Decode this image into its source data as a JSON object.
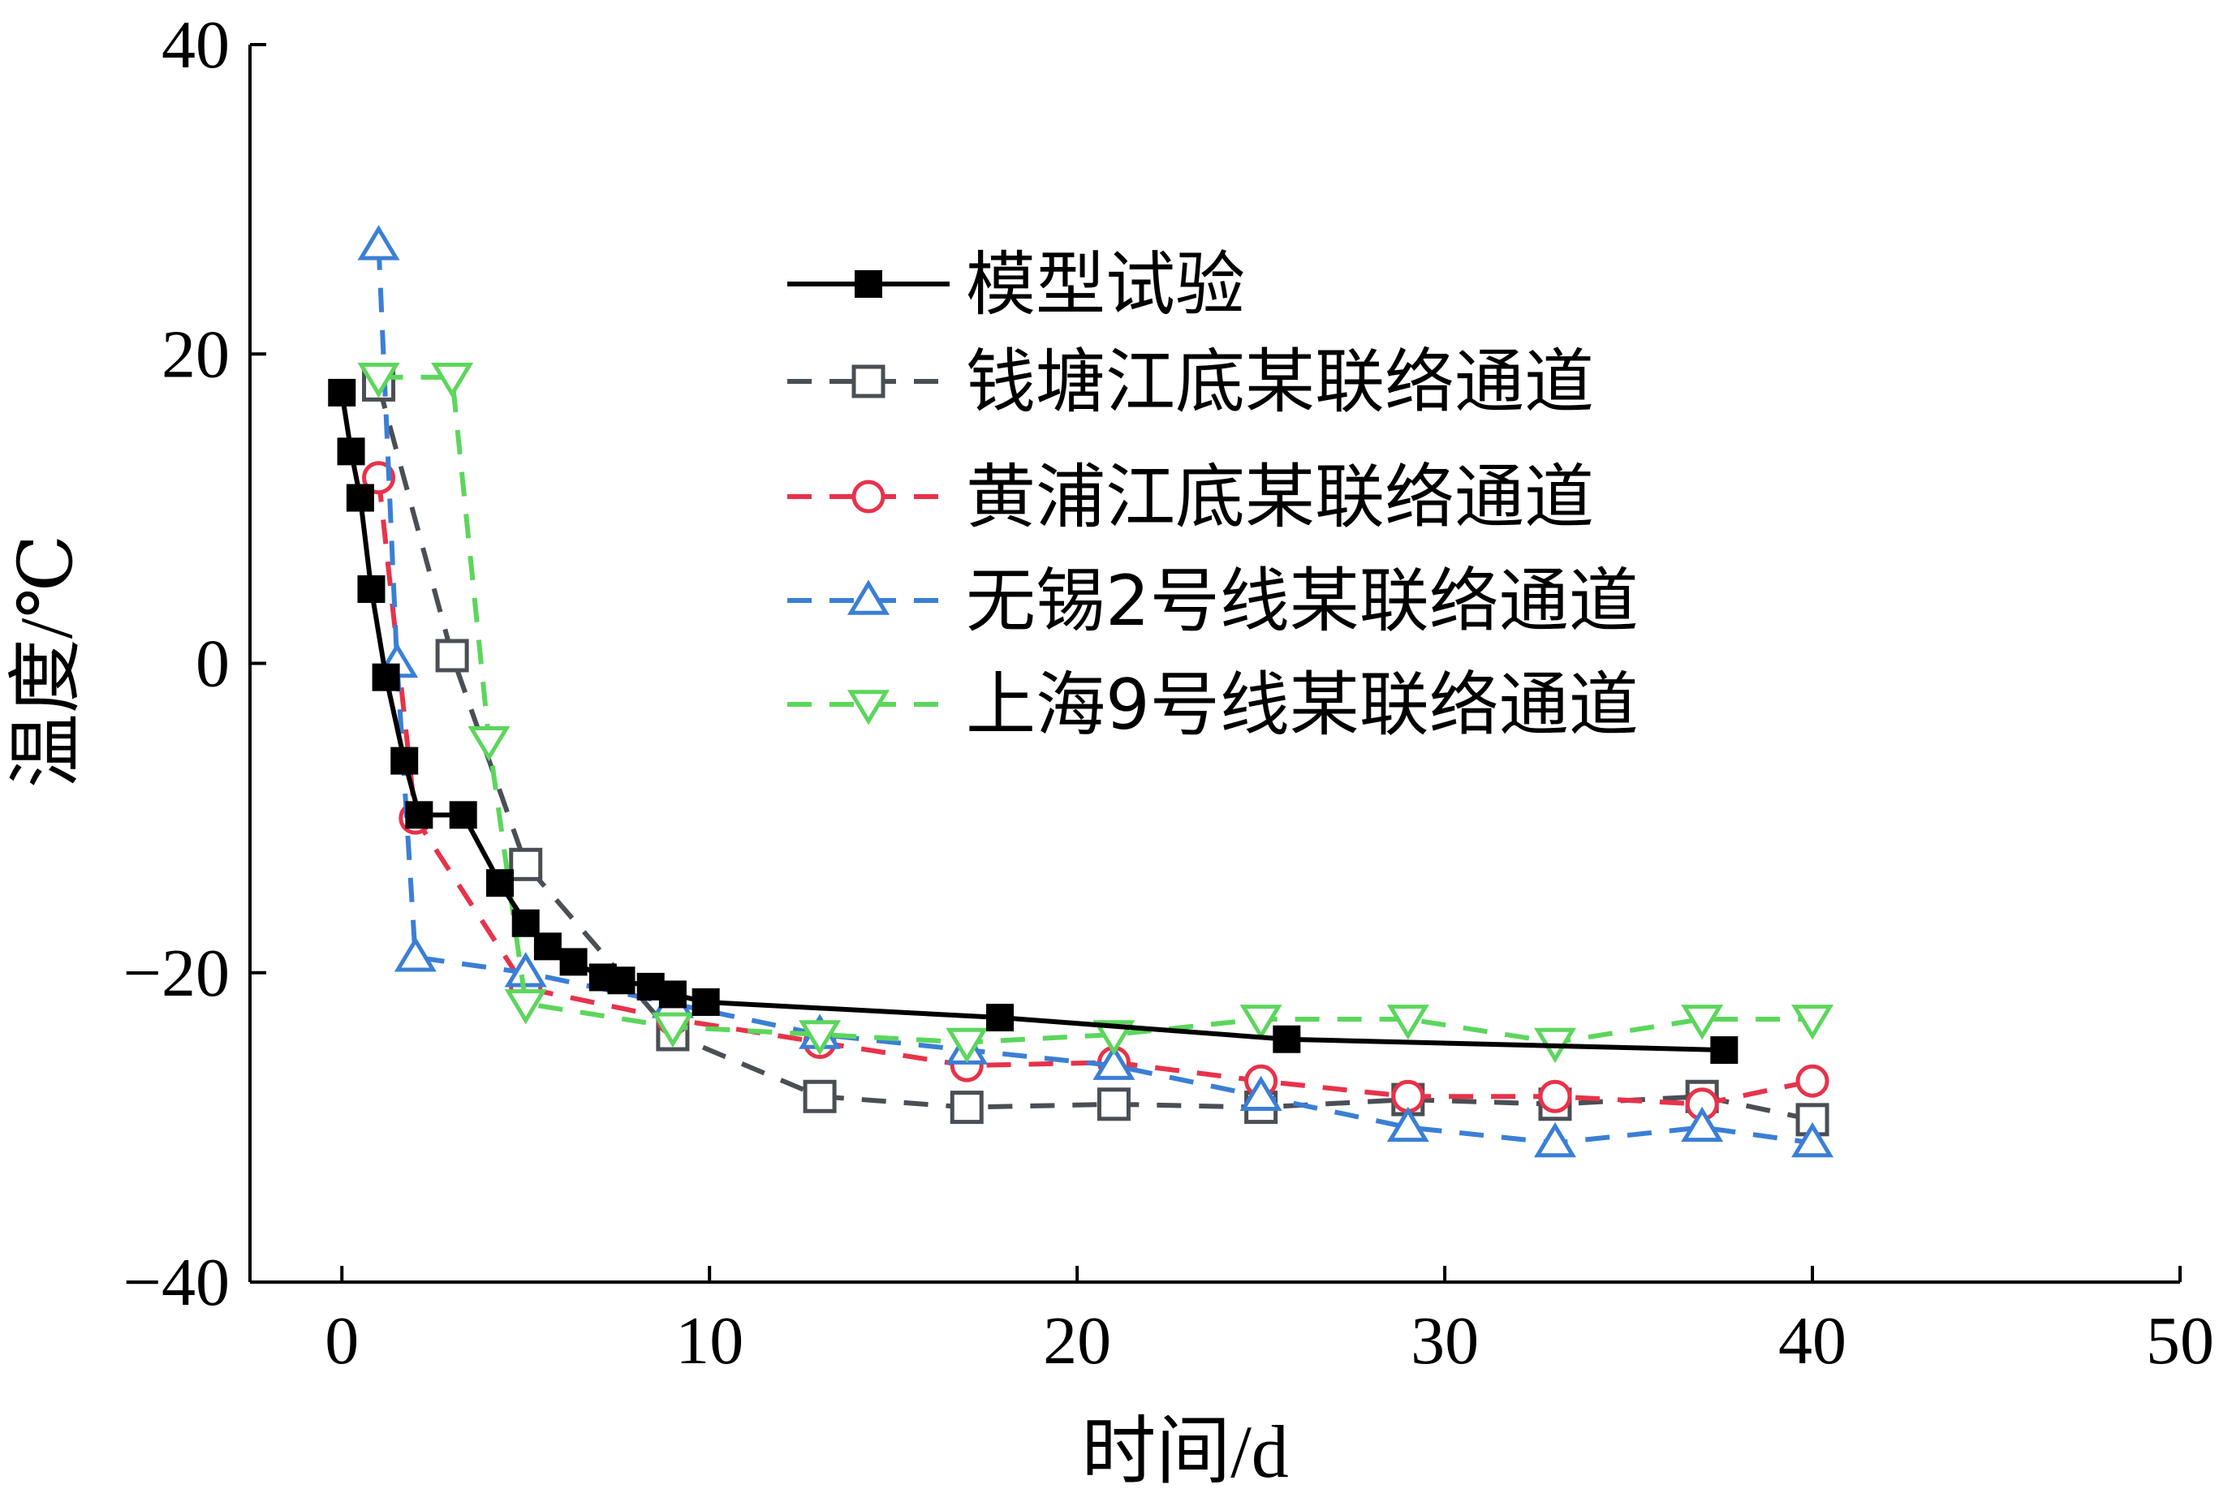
{
  "chart_data": {
    "type": "line",
    "xlabel": "时间/d",
    "ylabel": "温度/℃",
    "xlim": [
      -2.5,
      50
    ],
    "ylim": [
      -40,
      40
    ],
    "xticks": [
      0,
      10,
      20,
      30,
      40,
      50
    ],
    "yticks": [
      40,
      20,
      0,
      -20,
      -40
    ],
    "ytick_labels": [
      "40",
      "20",
      "0",
      "−20",
      "−40"
    ],
    "grid": false,
    "legend_position": "upper-right",
    "series": [
      {
        "name": "模型试验",
        "color": "#000000",
        "line_style": "solid",
        "marker": "filled-square",
        "x": [
          0,
          0.25,
          0.5,
          0.8,
          1.2,
          1.7,
          2.1,
          3.3,
          4.3,
          5.0,
          5.6,
          6.3,
          7.1,
          7.6,
          8.4,
          9.0,
          9.9,
          17.9,
          25.7,
          37.6
        ],
        "y": [
          17.5,
          13.7,
          10.7,
          4.8,
          -0.9,
          -6.3,
          -9.8,
          -9.8,
          -14.2,
          -16.8,
          -18.3,
          -19.3,
          -20.3,
          -20.5,
          -20.9,
          -21.4,
          -21.9,
          -22.9,
          -24.3,
          -25.0
        ]
      },
      {
        "name": "钱塘江底某联络通道",
        "color": "#4a4f55",
        "line_style": "dashed",
        "marker": "open-square",
        "x": [
          1,
          3,
          5,
          9,
          13,
          17,
          21,
          25,
          29,
          33,
          37,
          40
        ],
        "y": [
          18,
          0.5,
          -13,
          -24,
          -28,
          -28.7,
          -28.5,
          -28.7,
          -28.2,
          -28.5,
          -28.0,
          -29.5
        ]
      },
      {
        "name": "黄浦江底某联络通道",
        "color": "#e8324a",
        "line_style": "dashed",
        "marker": "open-circle",
        "x": [
          1,
          2,
          5,
          9,
          13,
          17,
          21,
          25,
          29,
          33,
          37,
          40
        ],
        "y": [
          12,
          -10,
          -21,
          -23,
          -24.5,
          -26,
          -25.8,
          -27,
          -28,
          -28,
          -28.5,
          -27
        ]
      },
      {
        "name": "无锡2号线某联络通道",
        "color": "#3a7fd5",
        "line_style": "dashed",
        "marker": "open-triangle-up",
        "x": [
          1,
          1.5,
          2,
          5,
          9,
          13,
          17,
          21,
          25,
          29,
          33,
          37,
          40
        ],
        "y": [
          27,
          0,
          -19,
          -20,
          -22,
          -24,
          -25,
          -26,
          -28,
          -30,
          -31,
          -30,
          -31
        ]
      },
      {
        "name": "上海9号线某联络通道",
        "color": "#5cd65c",
        "line_style": "dashed",
        "marker": "open-triangle-down",
        "x": [
          1,
          3,
          4,
          5,
          9,
          13,
          17,
          21,
          25,
          29,
          33,
          37,
          40
        ],
        "y": [
          18.5,
          18.5,
          -5,
          -22,
          -23.5,
          -24,
          -24.5,
          -24,
          -23,
          -23,
          -24.5,
          -23,
          -23
        ]
      }
    ]
  }
}
